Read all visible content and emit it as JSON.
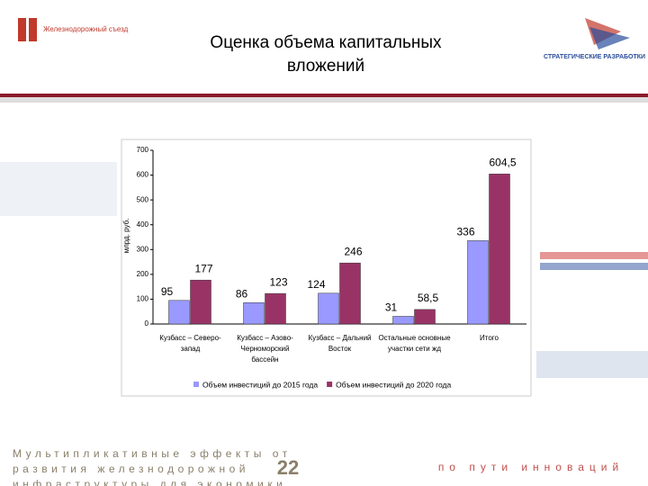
{
  "slide": {
    "logo_left": "Железнодорожный съезд",
    "logo_right": "СТРАТЕГИЧЕСКИЕ РАЗРАБОТКИ",
    "footer": "Мультипликативные эффекты от развития железнодорожной инфраструктуры для экономики",
    "page": "22",
    "slogan": "по пути инноваций"
  },
  "chart_data": {
    "type": "bar",
    "title": "Оценка объема капитальных вложений",
    "ylabel": "млрд. руб.",
    "categories": [
      "Кузбасс – Северо-запад",
      "Кузбасс – Азово-Черноморский бассейн",
      "Кузбасс – Дальний Восток",
      "Остальные основные участки сети жд",
      "Итого"
    ],
    "series": [
      {
        "name": "Объем инвестиций до 2015 года",
        "color": "#9999ff",
        "values": [
          95,
          86,
          124,
          31,
          336
        ]
      },
      {
        "name": "Объем инвестиций до 2020 года",
        "color": "#993366",
        "values": [
          177,
          123,
          246,
          58.5,
          604.5
        ],
        "value_labels": [
          "177",
          "123",
          "246",
          "58,5",
          "604,5"
        ]
      }
    ],
    "ylim": [
      0,
      700
    ],
    "yticks": [
      0,
      100,
      200,
      300,
      400,
      500,
      600,
      700
    ],
    "grid": false,
    "legend": "bottom"
  }
}
